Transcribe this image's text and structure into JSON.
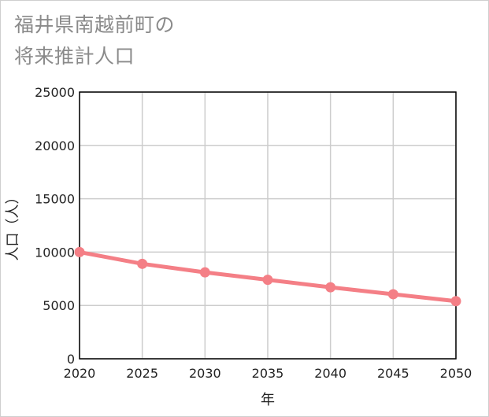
{
  "title": {
    "line1": "福井県南越前町の",
    "line2": "将来推計人口"
  },
  "colors": {
    "series": "#f47f86",
    "grid": "#cccccc",
    "axis": "#000000",
    "title": "#8a8a8a"
  },
  "chart_data": {
    "type": "line",
    "title": "福井県南越前町の将来推計人口",
    "xlabel": "年",
    "ylabel": "人口（人）",
    "x": [
      2020,
      2025,
      2030,
      2035,
      2040,
      2045,
      2050
    ],
    "xticks": [
      "2020",
      "2025",
      "2030",
      "2035",
      "2040",
      "2045",
      "2050"
    ],
    "yticks": [
      "0",
      "5000",
      "10000",
      "15000",
      "20000",
      "25000"
    ],
    "ylim": [
      0,
      25000
    ],
    "xlim": [
      2020,
      2050
    ],
    "grid": true,
    "series": [
      {
        "name": "人口",
        "values": [
          10000,
          8900,
          8100,
          7400,
          6700,
          6050,
          5400
        ]
      }
    ]
  }
}
